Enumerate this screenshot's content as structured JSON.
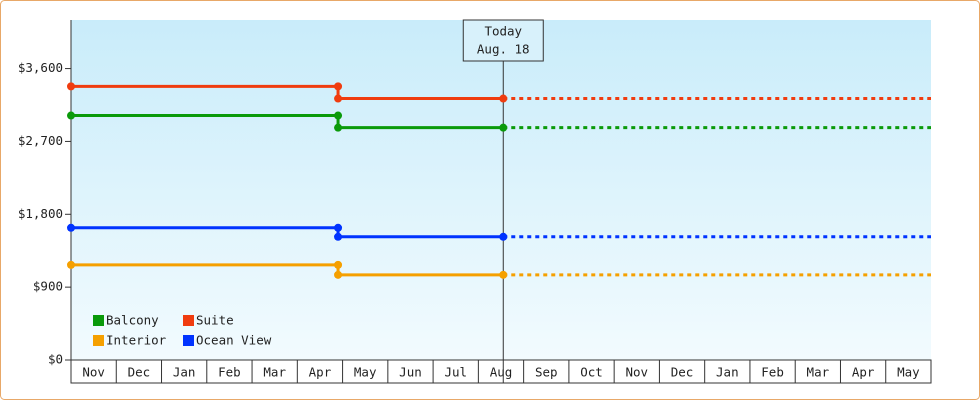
{
  "chart_data": {
    "type": "step-line",
    "categories": [
      "Nov",
      "Dec",
      "Jan",
      "Feb",
      "Mar",
      "Apr",
      "May",
      "Jun",
      "Jul",
      "Aug",
      "Sep",
      "Oct",
      "Nov",
      "Dec",
      "Jan",
      "Feb",
      "Mar",
      "Apr",
      "May"
    ],
    "xlim": [
      0,
      19
    ],
    "ylim": [
      0,
      4200
    ],
    "yticks": [
      {
        "value": 0,
        "label": "$0"
      },
      {
        "value": 900,
        "label": "$900"
      },
      {
        "value": 1800,
        "label": "$1,800"
      },
      {
        "value": 2700,
        "label": "$2,700"
      },
      {
        "value": 3600,
        "label": "$3,600"
      }
    ],
    "today": {
      "x": 9.55,
      "label": "Today",
      "date": "Aug. 18"
    },
    "series": [
      {
        "name": "Balcony",
        "color": "#0a9a0a",
        "x": [
          0,
          5.9,
          5.9,
          9.55
        ],
        "values": [
          3020,
          3020,
          2870,
          2870
        ]
      },
      {
        "name": "Suite",
        "color": "#f03c0f",
        "x": [
          0,
          5.9,
          5.9,
          9.55
        ],
        "values": [
          3380,
          3380,
          3230,
          3230
        ]
      },
      {
        "name": "Interior",
        "color": "#f5a000",
        "x": [
          0,
          5.9,
          5.9,
          9.55
        ],
        "values": [
          1175,
          1175,
          1052,
          1052
        ]
      },
      {
        "name": "Ocean View",
        "color": "#0033ff",
        "x": [
          0,
          5.9,
          5.9,
          9.55
        ],
        "values": [
          1633,
          1633,
          1522,
          1522
        ]
      }
    ]
  }
}
